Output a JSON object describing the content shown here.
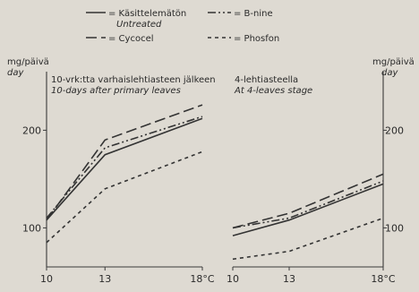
{
  "legend": {
    "items": [
      {
        "key": "untreated",
        "label_fi": "Käsittelemätön",
        "label_en": "Untreated",
        "dash": ""
      },
      {
        "key": "bnine",
        "label_fi": "B-nine",
        "label_en": "",
        "dash": "9,3,2,3,2,3"
      },
      {
        "key": "cycocel",
        "label_fi": "Cycocel",
        "label_en": "",
        "dash": "12,5"
      },
      {
        "key": "phosfon",
        "label_fi": "Phosfon",
        "label_en": "",
        "dash": "4,4"
      }
    ]
  },
  "left_axis": {
    "unit_fi": "mg/päivä",
    "unit_en": "day"
  },
  "right_axis": {
    "unit_fi": "mg/päivä",
    "unit_en": "day"
  },
  "chart_data": [
    {
      "type": "line",
      "title": "10-vrk:tta varhaislehtiasteen jälkeen",
      "subtitle": "10-days after primary leaves",
      "x": [
        10,
        13,
        18
      ],
      "x_tick_labels": [
        "10",
        "13",
        "18°C"
      ],
      "y_ticks": [
        100,
        200
      ],
      "ylim": [
        60,
        260
      ],
      "series": [
        {
          "name": "Käsittelemätön",
          "key": "untreated",
          "values": [
            108,
            175,
            212
          ]
        },
        {
          "name": "B-nine",
          "key": "bnine",
          "values": [
            110,
            182,
            214
          ]
        },
        {
          "name": "Cycocel",
          "key": "cycocel",
          "values": [
            108,
            190,
            226
          ]
        },
        {
          "name": "Phosfon",
          "key": "phosfon",
          "values": [
            85,
            140,
            178
          ]
        }
      ]
    },
    {
      "type": "line",
      "title": "4-lehtiasteella",
      "subtitle": "At 4-leaves stage",
      "x": [
        10,
        13,
        18
      ],
      "x_tick_labels": [
        "10",
        "13",
        "18°C"
      ],
      "y_ticks": [
        100,
        200
      ],
      "ylim": [
        60,
        260
      ],
      "series": [
        {
          "name": "Käsittelemätön",
          "key": "untreated",
          "values": [
            92,
            108,
            145
          ]
        },
        {
          "name": "B-nine",
          "key": "bnine",
          "values": [
            100,
            110,
            148
          ]
        },
        {
          "name": "Cycocel",
          "key": "cycocel",
          "values": [
            100,
            115,
            155
          ]
        },
        {
          "name": "Phosfon",
          "key": "phosfon",
          "values": [
            68,
            76,
            110
          ]
        }
      ]
    }
  ]
}
